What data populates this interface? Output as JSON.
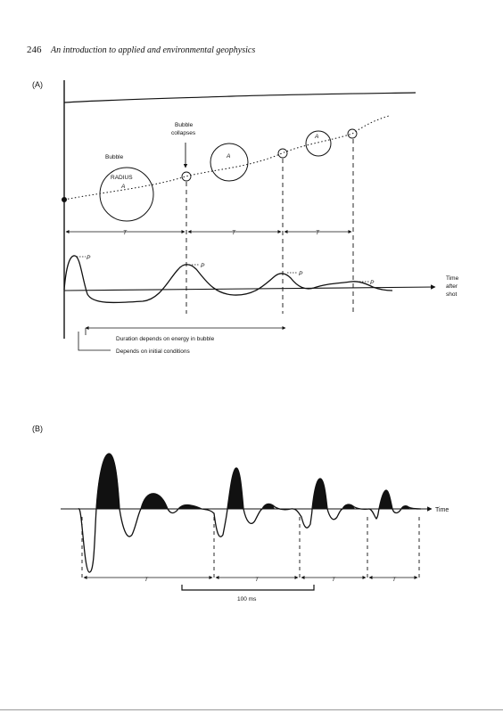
{
  "header": {
    "page_number": "246",
    "book_title": "An introduction to applied and environmental geophysics"
  },
  "panelA": {
    "label": "(A)",
    "bubble_label": "Bubble",
    "radius_label_1": "RADIUS",
    "radius_label_2": "A",
    "a1_label": "A",
    "a2_label": "A",
    "collapses_label_1": "Bubble",
    "collapses_label_2": "collapses",
    "t1": "T",
    "t2": "T",
    "t3": "T",
    "p0": "P",
    "p1": "P",
    "p2": "P",
    "p3": "P",
    "time_label_1": "Time",
    "time_label_2": "after",
    "time_label_3": "shot",
    "duration_note": "Duration depends on energy in bubble",
    "initial_note": "Depends on initial conditions"
  },
  "panelB": {
    "label": "(B)",
    "time_label": "Time",
    "t1": "T",
    "t2": "T",
    "t3": "T",
    "t4": "T",
    "scale_label": "100 ms"
  }
}
